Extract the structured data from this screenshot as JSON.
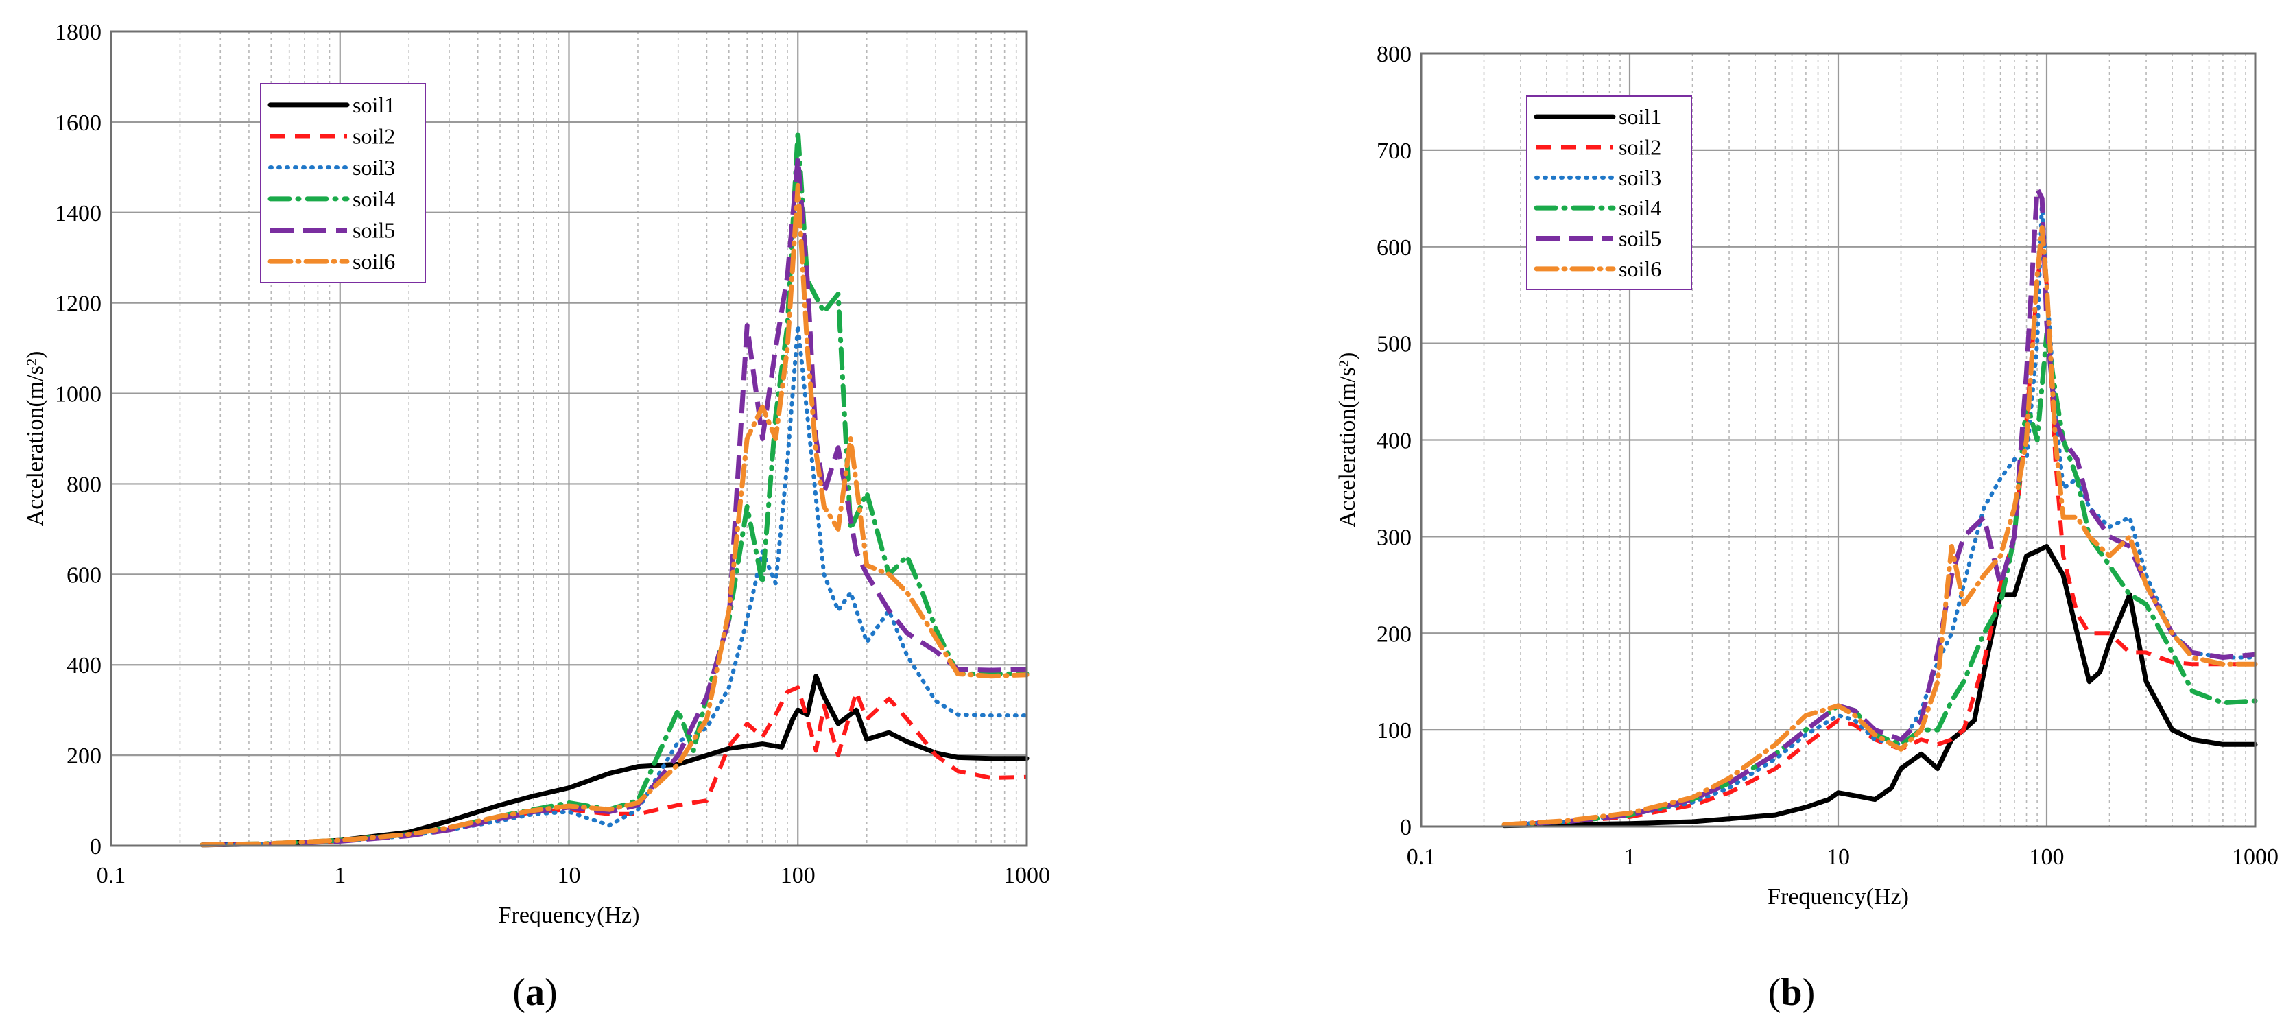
{
  "figure": {
    "colors": {
      "soil1": "#000000",
      "soil2": "#ff1a1a",
      "soil3": "#1f77c8",
      "soil4": "#1aaa4a",
      "soil5": "#7a2ea0",
      "soil6": "#f28a2a",
      "grid_major": "#9a9a9a",
      "grid_minor": "#b8b8b8",
      "legend_border": "#7a2ea0"
    }
  },
  "chart_data": [
    {
      "type": "line",
      "panel_label": "(a)",
      "panel_letter": "a",
      "xlabel": "Frequency(Hz)",
      "ylabel": "Acceleration(m/s²)",
      "xscale": "log",
      "xlim": [
        0.1,
        1000
      ],
      "ylim": [
        0,
        1800
      ],
      "xticks": [
        0.1,
        1,
        10,
        100,
        1000
      ],
      "xtick_labels": [
        "0.1",
        "1",
        "10",
        "100",
        "1000"
      ],
      "yticks": [
        0,
        200,
        400,
        600,
        800,
        1000,
        1200,
        1400,
        1600,
        1800
      ],
      "ytick_labels": [
        "0",
        "200",
        "400",
        "600",
        "800",
        "1000",
        "1200",
        "1400",
        "1600",
        "1800"
      ],
      "grid": true,
      "legend_position": "top-left",
      "series": [
        {
          "name": "soil1",
          "x": [
            0.25,
            0.5,
            1,
            2,
            3,
            5,
            7,
            10,
            15,
            20,
            30,
            50,
            70,
            85,
            95,
            100,
            110,
            120,
            130,
            150,
            180,
            200,
            250,
            300,
            400,
            500,
            700,
            1000
          ],
          "y": [
            2,
            4,
            12,
            30,
            55,
            90,
            110,
            128,
            160,
            175,
            180,
            215,
            225,
            218,
            280,
            300,
            290,
            375,
            330,
            270,
            300,
            235,
            250,
            230,
            205,
            195,
            193,
            193
          ]
        },
        {
          "name": "soil2",
          "x": [
            0.25,
            0.5,
            1,
            2,
            3,
            5,
            7,
            10,
            15,
            20,
            30,
            40,
            50,
            60,
            70,
            80,
            90,
            100,
            110,
            120,
            130,
            150,
            180,
            200,
            250,
            300,
            400,
            500,
            700,
            1000
          ],
          "y": [
            2,
            4,
            10,
            25,
            40,
            60,
            75,
            80,
            70,
            70,
            90,
            100,
            220,
            270,
            240,
            290,
            340,
            350,
            280,
            210,
            310,
            200,
            340,
            280,
            325,
            280,
            200,
            165,
            150,
            152
          ]
        },
        {
          "name": "soil3",
          "x": [
            0.25,
            0.5,
            1,
            2,
            3,
            5,
            7,
            10,
            15,
            20,
            30,
            40,
            50,
            60,
            70,
            80,
            90,
            100,
            110,
            130,
            150,
            170,
            200,
            250,
            300,
            400,
            500,
            700,
            1000
          ],
          "y": [
            2,
            4,
            10,
            22,
            35,
            55,
            70,
            75,
            45,
            80,
            230,
            260,
            350,
            500,
            650,
            580,
            850,
            1150,
            950,
            600,
            520,
            560,
            450,
            520,
            420,
            320,
            290,
            288,
            288
          ]
        },
        {
          "name": "soil4",
          "x": [
            0.25,
            0.5,
            1,
            2,
            3,
            5,
            7,
            10,
            15,
            20,
            30,
            35,
            40,
            50,
            60,
            70,
            80,
            90,
            100,
            110,
            130,
            150,
            170,
            200,
            250,
            300,
            350,
            400,
            500,
            700,
            1000
          ],
          "y": [
            2,
            5,
            12,
            25,
            40,
            65,
            80,
            95,
            80,
            100,
            300,
            210,
            330,
            500,
            750,
            580,
            950,
            1150,
            1580,
            1250,
            1180,
            1220,
            700,
            780,
            600,
            640,
            560,
            480,
            380,
            380,
            380
          ]
        },
        {
          "name": "soil5",
          "x": [
            0.25,
            0.5,
            1,
            2,
            3,
            5,
            7,
            10,
            15,
            20,
            30,
            40,
            50,
            60,
            70,
            80,
            90,
            100,
            110,
            120,
            130,
            150,
            180,
            200,
            250,
            300,
            400,
            500,
            700,
            1000
          ],
          "y": [
            2,
            4,
            10,
            22,
            35,
            60,
            75,
            85,
            75,
            90,
            200,
            330,
            500,
            1150,
            900,
            1100,
            1260,
            1520,
            1250,
            900,
            780,
            880,
            650,
            600,
            520,
            470,
            430,
            390,
            388,
            390
          ]
        },
        {
          "name": "soil6",
          "x": [
            0.25,
            0.5,
            1,
            2,
            3,
            5,
            7,
            10,
            15,
            20,
            30,
            40,
            50,
            60,
            70,
            80,
            90,
            100,
            110,
            120,
            130,
            150,
            170,
            200,
            250,
            300,
            400,
            500,
            700,
            1000
          ],
          "y": [
            2,
            5,
            12,
            25,
            40,
            65,
            78,
            88,
            80,
            95,
            180,
            280,
            520,
            900,
            970,
            900,
            1100,
            1460,
            1100,
            870,
            750,
            700,
            900,
            620,
            600,
            560,
            460,
            380,
            375,
            378
          ]
        }
      ]
    },
    {
      "type": "line",
      "panel_label": "(b)",
      "panel_letter": "b",
      "xlabel": "Frequency(Hz)",
      "ylabel": "Acceleration(m/s²)",
      "xscale": "log",
      "xlim": [
        0.1,
        1000
      ],
      "ylim": [
        0,
        800
      ],
      "xticks": [
        0.1,
        1,
        10,
        100,
        1000
      ],
      "xtick_labels": [
        "0.1",
        "1",
        "10",
        "100",
        "1000"
      ],
      "yticks": [
        0,
        100,
        200,
        300,
        400,
        500,
        600,
        700,
        800
      ],
      "ytick_labels": [
        "0",
        "100",
        "200",
        "300",
        "400",
        "500",
        "600",
        "700",
        "800"
      ],
      "grid": true,
      "legend_position": "top-left",
      "series": [
        {
          "name": "soil1",
          "x": [
            0.25,
            0.5,
            1,
            2,
            3,
            5,
            7,
            9,
            10,
            12,
            15,
            18,
            20,
            25,
            30,
            35,
            40,
            45,
            50,
            60,
            70,
            80,
            90,
            100,
            120,
            140,
            160,
            180,
            200,
            250,
            300,
            400,
            500,
            700,
            1000
          ],
          "y": [
            1,
            2,
            3,
            5,
            8,
            12,
            20,
            28,
            35,
            32,
            28,
            40,
            60,
            75,
            60,
            90,
            100,
            110,
            160,
            240,
            240,
            280,
            285,
            290,
            260,
            200,
            150,
            160,
            190,
            240,
            150,
            100,
            90,
            85,
            85
          ]
        },
        {
          "name": "soil2",
          "x": [
            0.25,
            0.5,
            1,
            2,
            3,
            5,
            7,
            10,
            12,
            15,
            20,
            25,
            30,
            35,
            40,
            50,
            60,
            70,
            80,
            90,
            95,
            100,
            110,
            120,
            140,
            160,
            200,
            250,
            300,
            400,
            500,
            700,
            1000
          ],
          "y": [
            2,
            5,
            10,
            22,
            35,
            60,
            85,
            110,
            105,
            90,
            80,
            90,
            85,
            90,
            100,
            170,
            250,
            300,
            420,
            560,
            610,
            560,
            380,
            280,
            220,
            200,
            200,
            180,
            180,
            170,
            168,
            168,
            168
          ]
        },
        {
          "name": "soil3",
          "x": [
            0.25,
            0.5,
            1,
            2,
            3,
            5,
            7,
            10,
            12,
            15,
            20,
            25,
            30,
            35,
            40,
            50,
            60,
            70,
            80,
            90,
            95,
            100,
            110,
            120,
            140,
            160,
            200,
            250,
            300,
            400,
            500,
            700,
            1000
          ],
          "y": [
            2,
            5,
            12,
            25,
            40,
            70,
            95,
            115,
            110,
            90,
            85,
            120,
            170,
            200,
            250,
            330,
            360,
            380,
            380,
            500,
            650,
            560,
            430,
            350,
            360,
            330,
            310,
            320,
            260,
            200,
            180,
            175,
            175
          ]
        },
        {
          "name": "soil4",
          "x": [
            0.25,
            0.5,
            1,
            2,
            3,
            5,
            7,
            10,
            12,
            15,
            20,
            25,
            30,
            35,
            40,
            50,
            60,
            70,
            80,
            90,
            100,
            110,
            120,
            140,
            160,
            200,
            250,
            300,
            400,
            500,
            700,
            1000
          ],
          "y": [
            2,
            5,
            12,
            28,
            45,
            75,
            100,
            125,
            120,
            95,
            85,
            100,
            100,
            130,
            150,
            200,
            230,
            300,
            440,
            400,
            510,
            450,
            400,
            360,
            300,
            270,
            240,
            230,
            180,
            140,
            128,
            130
          ]
        },
        {
          "name": "soil5",
          "x": [
            0.25,
            0.5,
            1,
            2,
            3,
            5,
            7,
            10,
            12,
            15,
            20,
            25,
            30,
            35,
            40,
            50,
            60,
            70,
            80,
            90,
            95,
            100,
            110,
            120,
            140,
            160,
            200,
            250,
            300,
            400,
            500,
            700,
            1000
          ],
          "y": [
            2,
            5,
            12,
            28,
            45,
            75,
            100,
            125,
            120,
            100,
            90,
            110,
            180,
            260,
            300,
            320,
            250,
            300,
            470,
            660,
            650,
            520,
            420,
            400,
            380,
            330,
            300,
            290,
            250,
            200,
            180,
            175,
            178
          ]
        },
        {
          "name": "soil6",
          "x": [
            0.25,
            0.5,
            1,
            2,
            3,
            5,
            7,
            10,
            12,
            15,
            20,
            25,
            30,
            35,
            40,
            50,
            60,
            70,
            80,
            90,
            95,
            100,
            110,
            120,
            140,
            160,
            200,
            250,
            300,
            400,
            500,
            700,
            1000
          ],
          "y": [
            2,
            6,
            14,
            30,
            50,
            85,
            115,
            125,
            115,
            95,
            80,
            100,
            150,
            290,
            230,
            260,
            280,
            330,
            400,
            570,
            620,
            560,
            400,
            320,
            320,
            300,
            280,
            300,
            250,
            200,
            175,
            168,
            168
          ]
        }
      ]
    }
  ]
}
